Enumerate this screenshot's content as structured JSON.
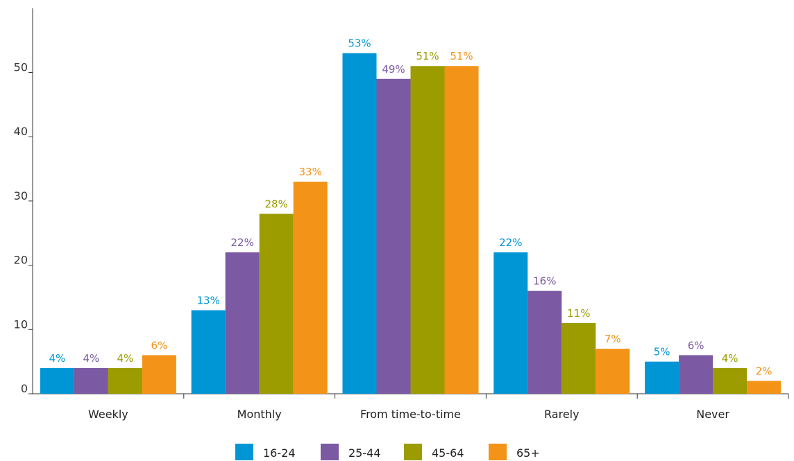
{
  "chart_data": {
    "type": "bar",
    "title": "",
    "xlabel": "",
    "ylabel": "",
    "ylim": [
      0,
      60
    ],
    "y_ticks": [
      0,
      10,
      20,
      30,
      40,
      50
    ],
    "grid": false,
    "legend_position": "bottom",
    "categories": [
      "Weekly",
      "Monthly",
      "From time-to-time",
      "Rarely",
      "Never"
    ],
    "series": [
      {
        "name": "16-24",
        "color": "#0096d6",
        "values": [
          4,
          13,
          53,
          22,
          5
        ],
        "labels": [
          "4%",
          "13%",
          "53%",
          "22%",
          "5%"
        ]
      },
      {
        "name": "25-44",
        "color": "#7b59a3",
        "values": [
          4,
          22,
          49,
          16,
          6
        ],
        "labels": [
          "4%",
          "22%",
          "49%",
          "16%",
          "6%"
        ]
      },
      {
        "name": "45-64",
        "color": "#9c9c00",
        "values": [
          4,
          28,
          51,
          11,
          4
        ],
        "labels": [
          "4%",
          "28%",
          "51%",
          "11%",
          "4%"
        ]
      },
      {
        "name": "65+",
        "color": "#f39318",
        "values": [
          6,
          33,
          51,
          7,
          2
        ],
        "labels": [
          "6%",
          "33%",
          "51%",
          "7%",
          "2%"
        ]
      }
    ]
  }
}
